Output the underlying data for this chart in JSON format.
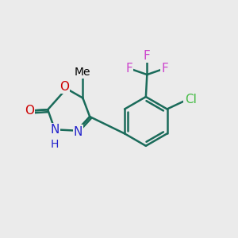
{
  "background_color": "#ebebeb",
  "bond_color": "#1a6b5a",
  "bond_color_dark": "#000000",
  "bond_width": 1.8,
  "figsize": [
    3.0,
    3.0
  ],
  "dpi": 100,
  "atom_colors": {
    "O": "#cc0000",
    "N": "#2222cc",
    "H": "#2222cc",
    "F": "#cc44cc",
    "Cl": "#44bb44",
    "C": "#1a6b5a"
  },
  "font_size": 11
}
